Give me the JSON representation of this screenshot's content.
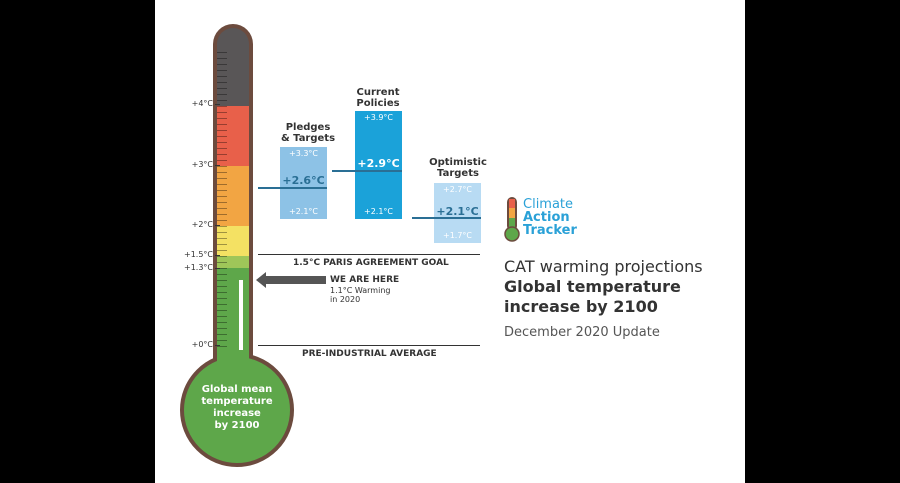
{
  "thermometer": {
    "ticks": [
      "+4°C",
      "+3°C",
      "+2°C",
      "+1.5°C",
      "+1.3°C",
      "+0°C"
    ],
    "bulb_label": [
      "Global mean",
      "temperature",
      "increase",
      "by 2100"
    ]
  },
  "scenarios": {
    "pledges": {
      "title": [
        "Pledges",
        "& Targets"
      ],
      "high": "+3.3°C",
      "mid": "+2.6°C",
      "low": "+2.1°C"
    },
    "current": {
      "title": [
        "Current",
        "Policies"
      ],
      "high": "+3.9°C",
      "mid": "+2.9°C",
      "low": "+2.1°C"
    },
    "optimistic": {
      "title": [
        "Optimistic",
        "Targets"
      ],
      "high": "+2.7°C",
      "mid": "+2.1°C",
      "low": "+1.7°C"
    }
  },
  "paris_goal_label": "1.5°C PARIS AGREEMENT GOAL",
  "we_are_here": {
    "title": "WE ARE HERE",
    "line1": "1.1°C Warming",
    "line2": "in 2020"
  },
  "pre_industrial_label": "PRE-INDUSTRIAL AVERAGE",
  "logo": {
    "line1": "Climate",
    "line2": "Action",
    "line3": "Tracker"
  },
  "projection_title": {
    "line1": "CAT warming projections",
    "line2": "Global temperature",
    "line3": "increase by 2100",
    "update": "December 2020 Update"
  },
  "colors": {
    "band_4plus": "#595657",
    "band_3_4": "#e8604a",
    "band_2_3": "#f2a543",
    "band_15_2": "#f4e163",
    "band_13_15": "#9fc659",
    "band_0_13": "#5ea74a",
    "frame": "#6c4b3e",
    "pledges": "#8dc2e6",
    "current": "#1ba2d9",
    "optimistic": "#b8dbf3",
    "marker": "#2a6f95",
    "logo_blue": "#2aa1d7"
  }
}
